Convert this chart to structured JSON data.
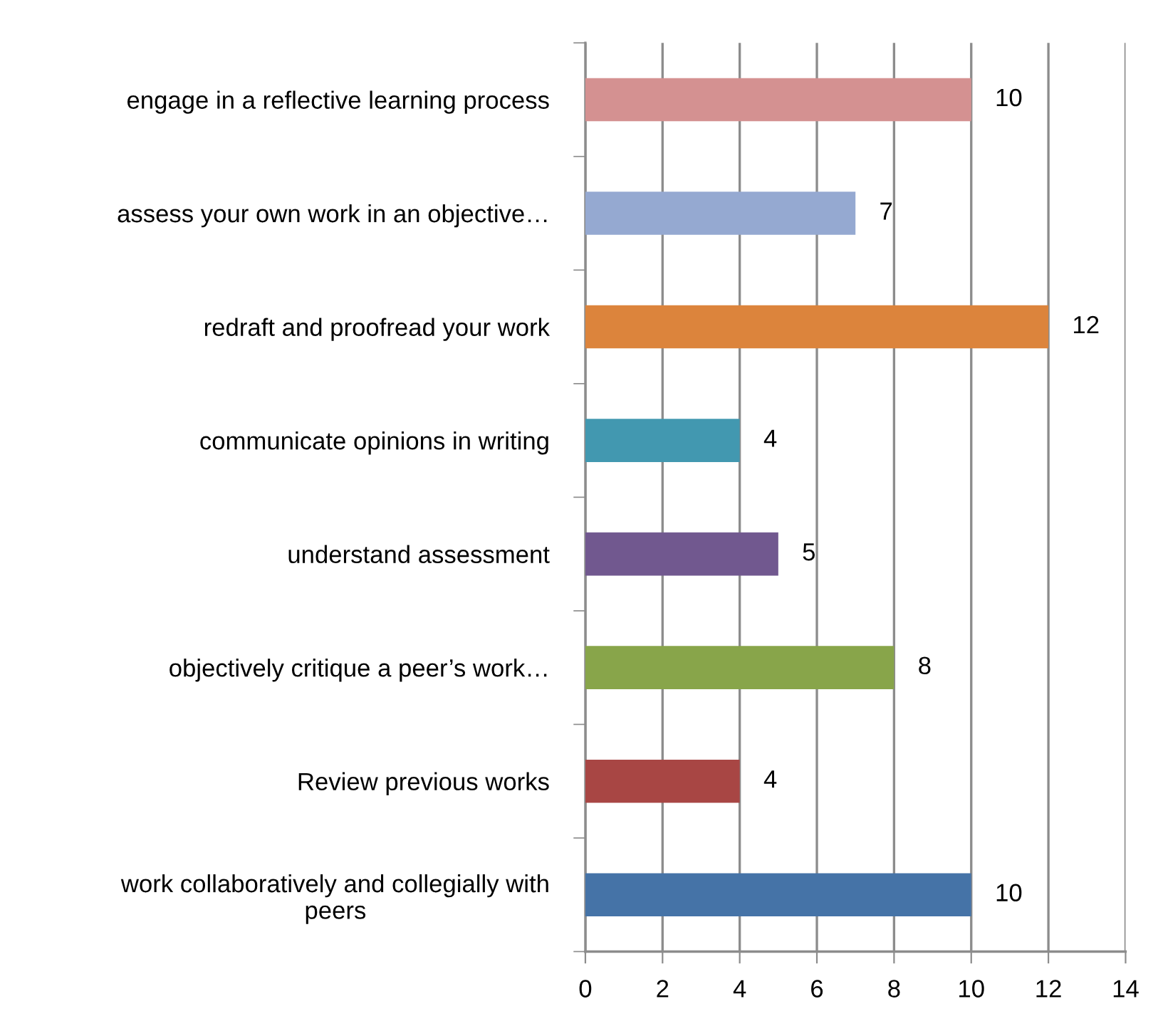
{
  "chart_data": {
    "type": "bar",
    "orientation": "horizontal",
    "categories": [
      "engage in a reflective learning process",
      "assess your own work in an objective…",
      "redraft and proofread your work",
      "communicate opinions in writing",
      "understand assessment",
      "objectively critique a peer’s work…",
      "Review previous works",
      "work collaboratively and collegially with\npeers"
    ],
    "values": [
      10,
      7,
      12,
      4,
      5,
      8,
      4,
      10
    ],
    "colors": [
      "#d49191",
      "#95a9d1",
      "#dc843c",
      "#4298b0",
      "#71588f",
      "#88a54a",
      "#a84644",
      "#4573a7"
    ],
    "xlim": [
      0,
      14
    ],
    "xticks": [
      0,
      2,
      4,
      6,
      8,
      10,
      12,
      14
    ],
    "grid": "x",
    "data_labels": true
  }
}
